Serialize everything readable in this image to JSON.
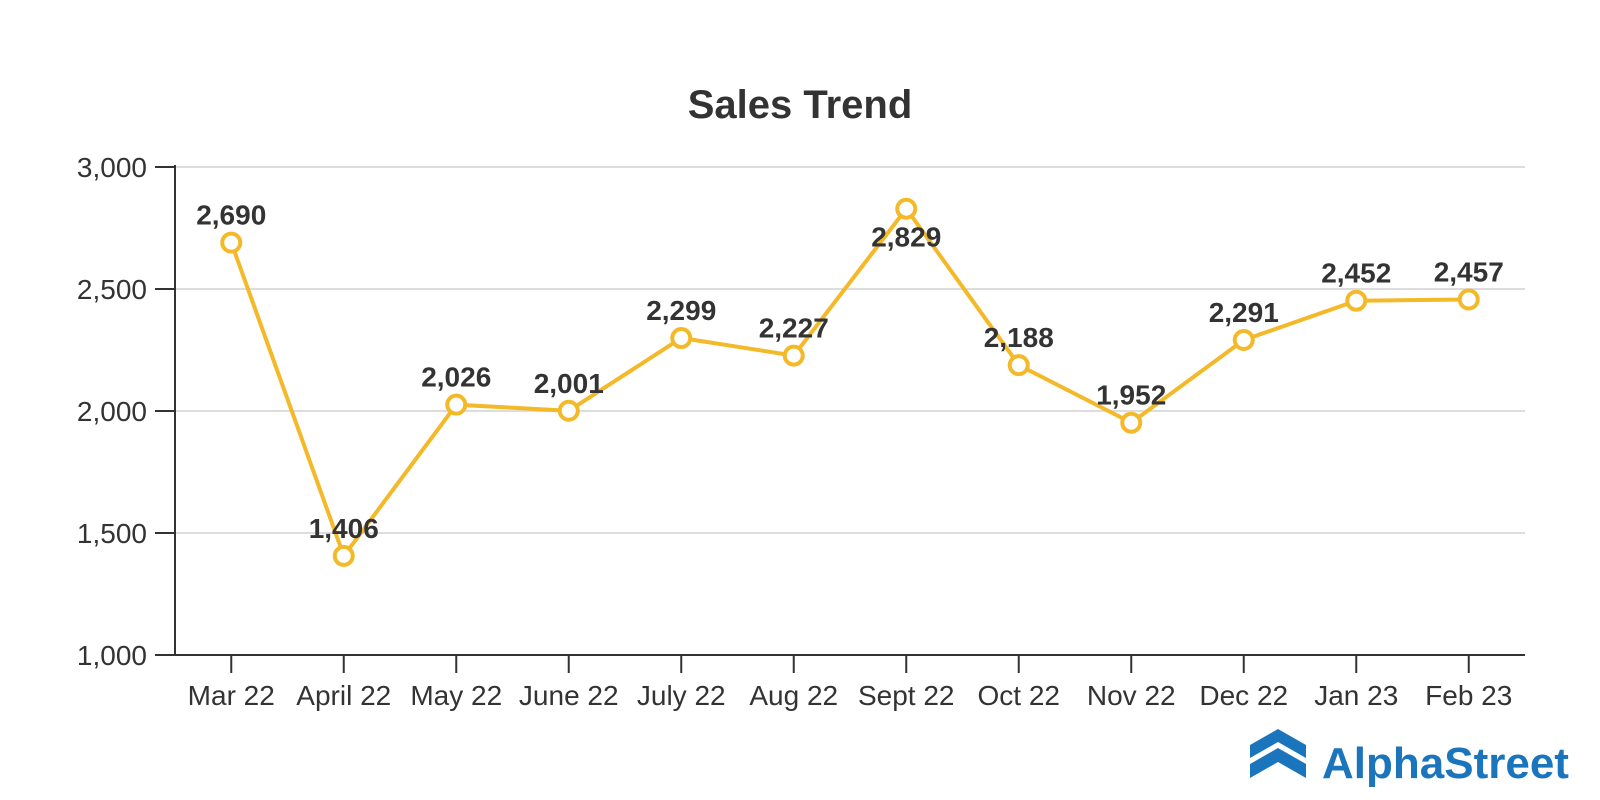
{
  "chart_data": {
    "type": "line",
    "title": "Sales Trend",
    "xlabel": "",
    "ylabel": "",
    "categories": [
      "Mar 22",
      "April 22",
      "May 22",
      "June 22",
      "July 22",
      "Aug 22",
      "Sept 22",
      "Oct 22",
      "Nov 22",
      "Dec 22",
      "Jan 23",
      "Feb 23"
    ],
    "values": [
      2690,
      1406,
      2026,
      2001,
      2299,
      2227,
      2829,
      2188,
      1952,
      2291,
      2452,
      2457
    ],
    "value_labels": [
      "2,690",
      "1,406",
      "2,026",
      "2,001",
      "2,299",
      "2,227",
      "2,829",
      "2,188",
      "1,952",
      "2,291",
      "2,452",
      "2,457"
    ],
    "ylim": [
      1000,
      3000
    ],
    "yticks": [
      1000,
      1500,
      2000,
      2500,
      3000
    ],
    "ytick_labels": [
      "1,000",
      "1,500",
      "2,000",
      "2,500",
      "3,000"
    ],
    "grid": true,
    "legend": "none",
    "colors": {
      "line": "#F4B929",
      "text": "#333333",
      "grid": "#dddddd"
    }
  },
  "brand": {
    "name": "AlphaStreet",
    "color": "#1B75BC"
  }
}
